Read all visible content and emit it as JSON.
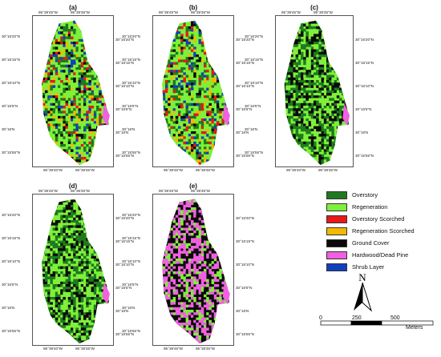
{
  "panels": [
    {
      "label": "(a)",
      "type": "classified",
      "top": [
        "95°39'45\"W",
        "95°39'35\"W"
      ],
      "bottom": [
        "95°39'40\"W",
        "95°39'35\"W"
      ],
      "left": [
        "30°16'20\"N",
        "30°16'15\"N",
        "30°16'10\"N",
        "30°16'5\"N",
        "30°16'N",
        "30°15'55\"N"
      ],
      "right": [
        "30°16'20\"N",
        "30°16'15\"N",
        "30°16'10\"N",
        "30°16'5\"N",
        "30°16'N",
        "30°15'55\"N"
      ]
    },
    {
      "label": "(b)",
      "type": "classified",
      "top": [
        "95°39'45\"W",
        "95°39'35\"W"
      ],
      "bottom": [
        "95°39'45\"W",
        "95°39'35\"W"
      ],
      "left": [
        "30°16'20\"N",
        "30°16'15\"N",
        "30°16'10\"N",
        "30°16'5\"N",
        "30°16'N",
        "30°15'55\"N"
      ],
      "right": [
        "30°16'20\"N",
        "30°16'15\"N",
        "30°16'10\"N",
        "30°16'5\"N",
        "30°16'N",
        "30°15'55\"N"
      ]
    },
    {
      "label": "(c)",
      "type": "green",
      "top": [
        "95°39'45\"W",
        "95°39'35\"W"
      ],
      "bottom": [
        "95°39'40\"W",
        "95°39'35\"W"
      ],
      "left": [
        "30°16'20\"N",
        "30°16'15\"N",
        "30°16'10\"N",
        "30°16'5\"N",
        "30°16'N",
        "30°15'55\"N"
      ],
      "right": [
        "30°16'20\"N",
        "30°16'15\"N",
        "30°16'10\"N",
        "30°16'5\"N",
        "30°16'N",
        "30°15'55\"N"
      ]
    },
    {
      "label": "(d)",
      "type": "green",
      "top": [
        "95°39'45\"W",
        "95°39'35\"W"
      ],
      "bottom": [
        "95°39'40\"W",
        "95°39'35\"W"
      ],
      "left": [
        "30°16'20\"N",
        "30°16'15\"N",
        "30°16'10\"N",
        "30°16'5\"N",
        "30°16'N",
        "30°15'55\"N"
      ],
      "right": [
        "30°16'20\"N",
        "30°16'15\"N",
        "30°16'10\"N",
        "30°16'5\"N",
        "30°16'N",
        "30°15'55\"N"
      ]
    },
    {
      "label": "(e)",
      "type": "pink",
      "top": [
        "95°39'45\"W",
        "95°39'35\"W"
      ],
      "bottom": [
        "95°39'45\"W",
        "95°39'35\"W"
      ],
      "left": [
        "30°16'20\"N",
        "30°16'15\"N",
        "30°16'10\"N",
        "30°16'5\"N",
        "30°16'N",
        "30°15'55\"N"
      ],
      "right": [
        "30°16'20\"N",
        "30°16'15\"N",
        "30°16'10\"N",
        "30°16'5\"N",
        "30°16'N",
        "30°15'55\"N"
      ]
    }
  ],
  "legend": [
    {
      "label": "Overstory",
      "color": "#1e7a1e"
    },
    {
      "label": "Regeneration",
      "color": "#7ff03a"
    },
    {
      "label": "Overstory Scorched",
      "color": "#e81818"
    },
    {
      "label": "Regeneration Scorched",
      "color": "#f5b800"
    },
    {
      "label": "Ground Cover",
      "color": "#0a0a0a"
    },
    {
      "label": "Hardwood/Dead Pine",
      "color": "#f060e0"
    },
    {
      "label": "Shrub Layer",
      "color": "#1040c0"
    }
  ],
  "north_label": "N",
  "scale": {
    "labels": [
      "0",
      "250",
      "500"
    ],
    "unit": "Meters"
  }
}
